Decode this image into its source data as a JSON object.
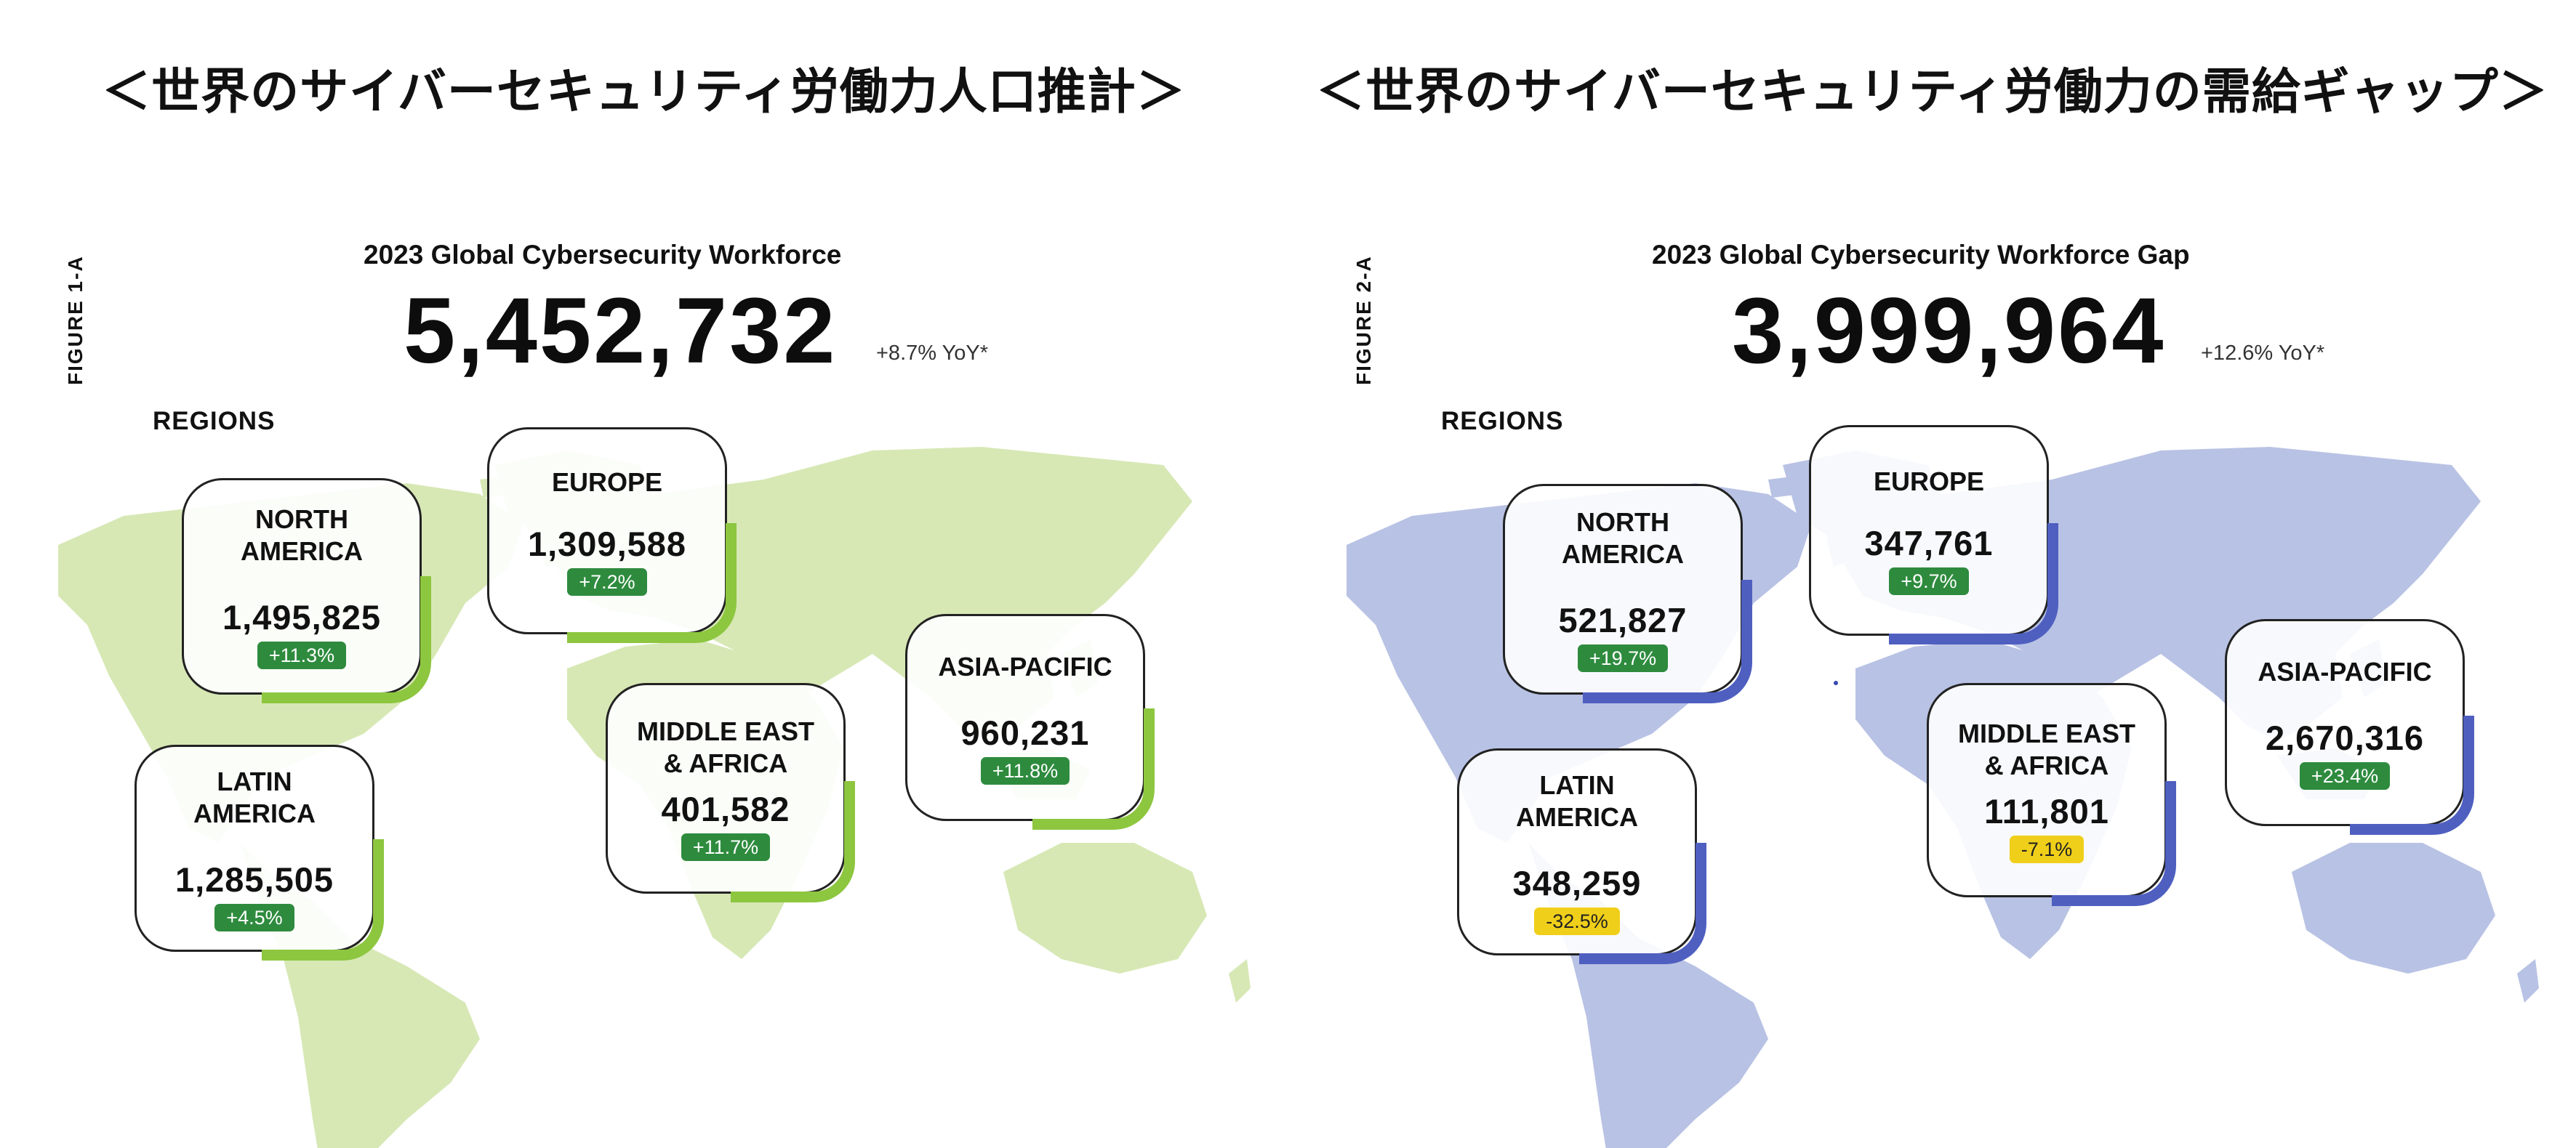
{
  "colors": {
    "left_map": "#d7e8b5",
    "left_accent": "#8dc63f",
    "right_map": "#b8c2e4",
    "right_accent": "#4f5fc0",
    "badge_up": "#2e8b3e",
    "badge_down": "#f0cf1a"
  },
  "left": {
    "heading": "＜世界のサイバーセキュリティ労働力人口推計＞",
    "figure_label": "FIGURE 1-A",
    "subtitle": "2023 Global Cybersecurity Workforce",
    "total": "5,452,732",
    "yoy": "+8.7% YoY*",
    "regions_label": "REGIONS",
    "regions": {
      "north_america": {
        "name": "NORTH\nAMERICA",
        "value": "1,495,825",
        "change": "+11.3%",
        "trend": "up"
      },
      "europe": {
        "name": "EUROPE",
        "value": "1,309,588",
        "change": "+7.2%",
        "trend": "up"
      },
      "latin_america": {
        "name": "LATIN\nAMERICA",
        "value": "1,285,505",
        "change": "+4.5%",
        "trend": "up"
      },
      "middle_east_africa": {
        "name": "MIDDLE EAST\n& AFRICA",
        "value": "401,582",
        "change": "+11.7%",
        "trend": "up"
      },
      "asia_pacific": {
        "name": "ASIA-PACIFIC",
        "value": "960,231",
        "change": "+11.8%",
        "trend": "up"
      }
    }
  },
  "right": {
    "heading": "＜世界のサイバーセキュリティ労働力の需給ギャップ＞",
    "figure_label": "FIGURE 2-A",
    "subtitle": "2023 Global Cybersecurity Workforce Gap",
    "total": "3,999,964",
    "yoy": "+12.6% YoY*",
    "regions_label": "REGIONS",
    "regions": {
      "north_america": {
        "name": "NORTH\nAMERICA",
        "value": "521,827",
        "change": "+19.7%",
        "trend": "up"
      },
      "europe": {
        "name": "EUROPE",
        "value": "347,761",
        "change": "+9.7%",
        "trend": "up"
      },
      "latin_america": {
        "name": "LATIN\nAMERICA",
        "value": "348,259",
        "change": "-32.5%",
        "trend": "down"
      },
      "middle_east_africa": {
        "name": "MIDDLE EAST\n& AFRICA",
        "value": "111,801",
        "change": "-7.1%",
        "trend": "down"
      },
      "asia_pacific": {
        "name": "ASIA-PACIFIC",
        "value": "2,670,316",
        "change": "+23.4%",
        "trend": "up"
      }
    }
  }
}
